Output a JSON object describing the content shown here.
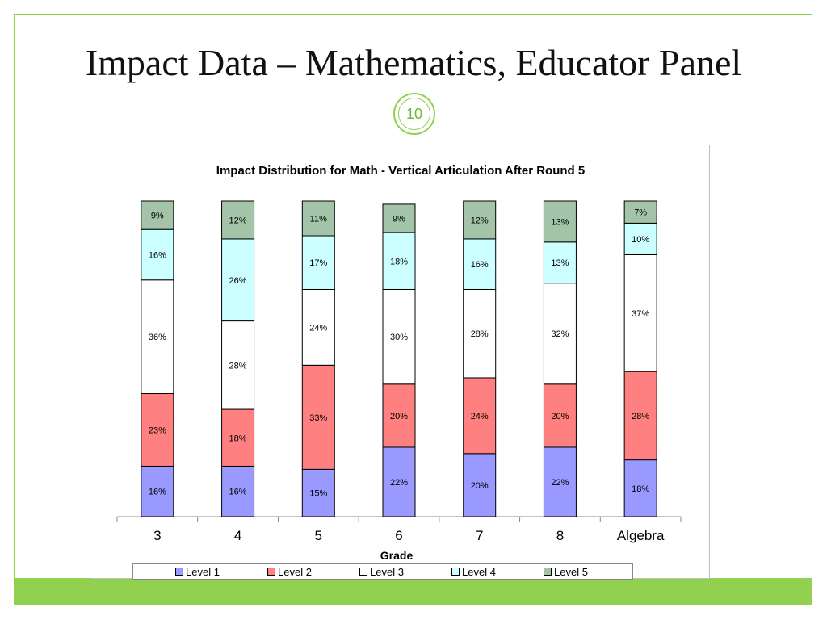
{
  "slide": {
    "title": "Impact Data – Mathematics, Educator Panel",
    "page_number": "10",
    "accent_color": "#8fd14f"
  },
  "chart_data": {
    "type": "bar",
    "stacked": true,
    "title": "Impact Distribution for Math - Vertical Articulation After Round 5",
    "xlabel": "Grade",
    "ylabel": "",
    "ylim": [
      0,
      100
    ],
    "categories": [
      "3",
      "4",
      "5",
      "6",
      "7",
      "8",
      "Algebra"
    ],
    "series": [
      {
        "name": "Level 1",
        "color": "#9999ff",
        "values": [
          16,
          16,
          15,
          22,
          20,
          22,
          18
        ]
      },
      {
        "name": "Level 2",
        "color": "#ff8080",
        "values": [
          23,
          18,
          33,
          20,
          24,
          20,
          28
        ]
      },
      {
        "name": "Level 3",
        "color": "#ffffff",
        "values": [
          36,
          28,
          24,
          30,
          28,
          32,
          37
        ]
      },
      {
        "name": "Level 4",
        "color": "#ccffff",
        "values": [
          16,
          26,
          17,
          18,
          16,
          13,
          10
        ]
      },
      {
        "name": "Level 5",
        "color": "#a3c4a8",
        "values": [
          9,
          12,
          11,
          9,
          12,
          13,
          7
        ]
      }
    ],
    "data_label_suffix": "%",
    "legend": "bottom",
    "grid": false
  }
}
